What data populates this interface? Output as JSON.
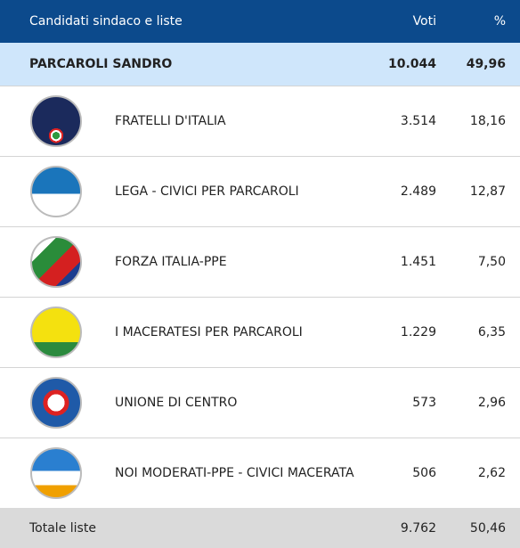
{
  "header": {
    "title": "Candidati sindaco e liste",
    "votes": "Voti",
    "percent": "%"
  },
  "candidate": {
    "name": "PARCAROLI SANDRO",
    "votes": "10.044",
    "percent": "49,96"
  },
  "lists": [
    {
      "name": "FRATELLI D'ITALIA",
      "votes": "3.514",
      "percent": "18,16"
    },
    {
      "name": "LEGA - CIVICI PER PARCAROLI",
      "votes": "2.489",
      "percent": "12,87"
    },
    {
      "name": "FORZA ITALIA-PPE",
      "votes": "1.451",
      "percent": "7,50"
    },
    {
      "name": "I MACERATESI PER PARCAROLI",
      "votes": "1.229",
      "percent": "6,35"
    },
    {
      "name": "UNIONE DI CENTRO",
      "votes": "573",
      "percent": "2,96"
    },
    {
      "name": "NOI MODERATI-PPE - CIVICI MACERATA",
      "votes": "506",
      "percent": "2,62"
    }
  ],
  "total": {
    "label": "Totale liste",
    "votes": "9.762",
    "percent": "50,46"
  }
}
